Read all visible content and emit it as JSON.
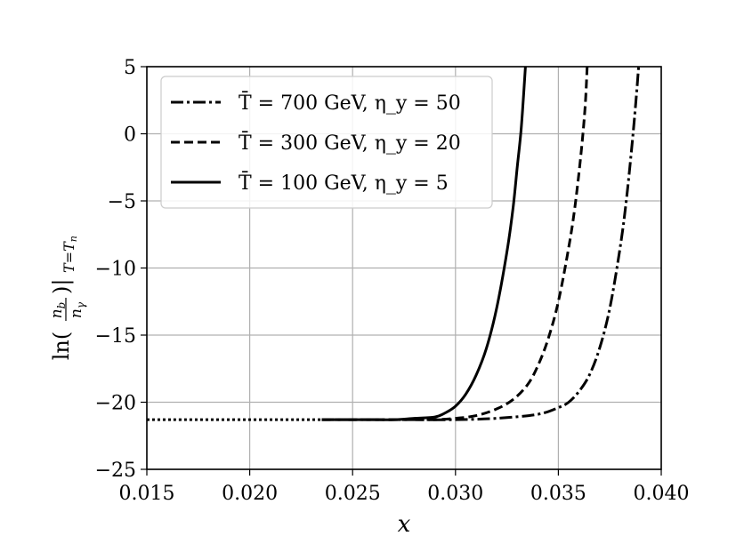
{
  "chart_data": {
    "type": "line",
    "title": "",
    "xlabel": "x",
    "ylabel": "ln(n_b/n_γ)|T=T_n",
    "xlim": [
      0.015,
      0.04
    ],
    "ylim": [
      -25,
      5
    ],
    "grid": true,
    "legend_position": "top-left",
    "x_ticks": [
      "0.015",
      "0.020",
      "0.025",
      "0.030",
      "0.035",
      "0.040"
    ],
    "y_ticks": [
      "5",
      "0",
      "−5",
      "−10",
      "−15",
      "−20",
      "−25"
    ],
    "series": [
      {
        "name": "T̄ = 700 GeV, η_y = 50",
        "line_style": "dash-dot",
        "color": "#000000",
        "x": [
          0.0235,
          0.026,
          0.028,
          0.03,
          0.032,
          0.034,
          0.035,
          0.0355,
          0.036,
          0.0365,
          0.037,
          0.0375,
          0.038,
          0.0383,
          0.0386,
          0.0388,
          0.0389
        ],
        "y": [
          -21.3,
          -21.3,
          -21.3,
          -21.3,
          -21.2,
          -20.9,
          -20.4,
          -20.0,
          -19.2,
          -18.0,
          -16.0,
          -13.0,
          -8.5,
          -5.0,
          -0.5,
          3.0,
          5.0
        ]
      },
      {
        "name": "T̄ = 300 GeV, η_y = 20",
        "line_style": "dashed",
        "color": "#000000",
        "x": [
          0.0235,
          0.026,
          0.028,
          0.029,
          0.03,
          0.031,
          0.032,
          0.0328,
          0.0335,
          0.034,
          0.0345,
          0.035,
          0.0355,
          0.0358,
          0.0361,
          0.0363,
          0.0364
        ],
        "y": [
          -21.3,
          -21.3,
          -21.3,
          -21.3,
          -21.2,
          -21.0,
          -20.5,
          -19.8,
          -18.7,
          -17.3,
          -15.3,
          -12.5,
          -8.5,
          -5.5,
          -1.5,
          2.0,
          5.0
        ]
      },
      {
        "name": "T̄ = 100 GeV, η_y = 5",
        "line_style": "solid",
        "color": "#000000",
        "x": [
          0.0235,
          0.026,
          0.027,
          0.028,
          0.029,
          0.0295,
          0.03,
          0.0305,
          0.031,
          0.0315,
          0.032,
          0.0325,
          0.0328,
          0.033,
          0.0332,
          0.0334
        ],
        "y": [
          -21.3,
          -21.3,
          -21.3,
          -21.2,
          -21.1,
          -20.8,
          -20.3,
          -19.4,
          -18.0,
          -16.0,
          -13.0,
          -8.8,
          -5.5,
          -2.5,
          0.5,
          5.0
        ]
      },
      {
        "name": "",
        "line_style": "dotted",
        "color": "#000000",
        "x": [
          0.015,
          0.0235
        ],
        "y": [
          -21.3,
          -21.3
        ]
      }
    ]
  }
}
